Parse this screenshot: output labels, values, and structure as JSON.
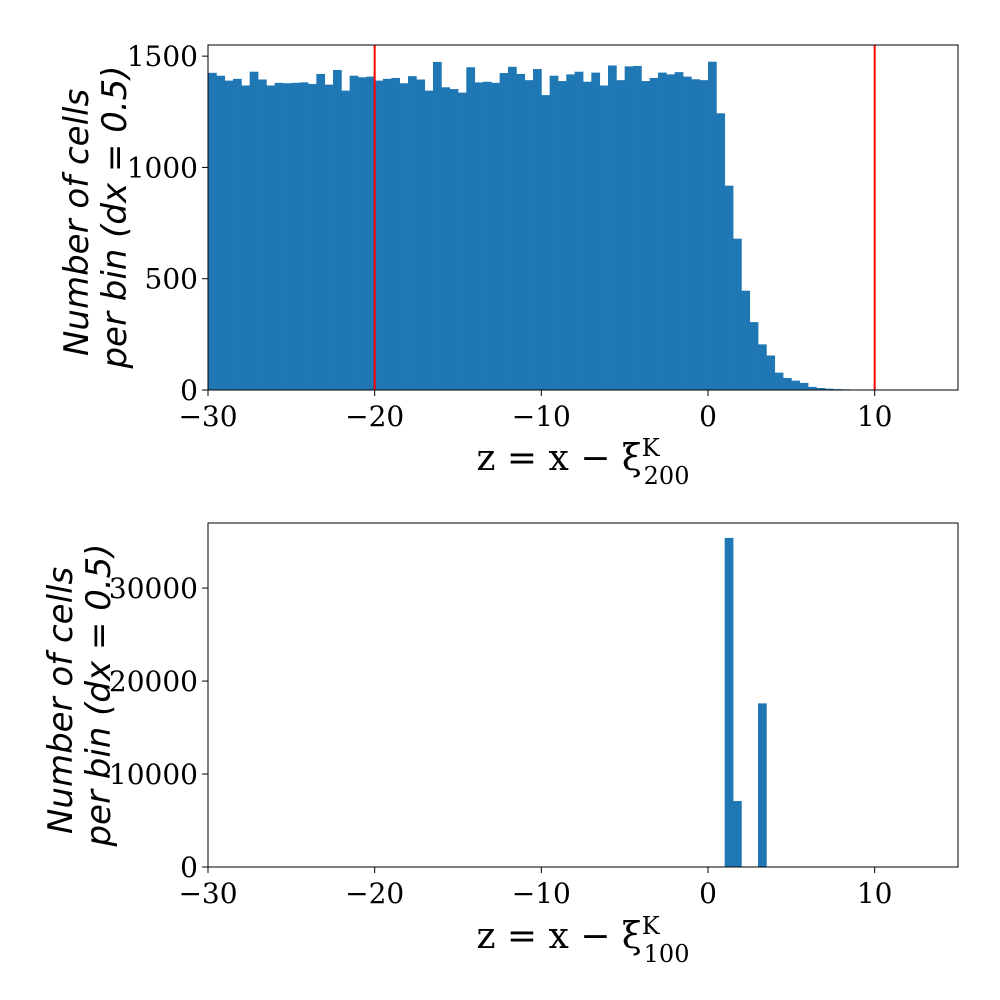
{
  "chart_data": [
    {
      "type": "bar",
      "bin_width": 0.5,
      "xlim": [
        -30,
        15
      ],
      "ylim": [
        0,
        1550
      ],
      "xticks": [
        -30,
        -20,
        -10,
        0,
        10
      ],
      "yticks": [
        0,
        500,
        1000,
        1500
      ],
      "xtick_labels": [
        "−30",
        "−20",
        "−10",
        "0",
        "10"
      ],
      "ytick_labels": [
        "0",
        "500",
        "1000",
        "1500"
      ],
      "xlabel": "z = x − ξ",
      "xlabel_sup": "K",
      "xlabel_sub": "200",
      "ylabel_line1": "Number of cells",
      "ylabel_line2": "per bin (dx = 0.5)",
      "bar_color": "#1f77b4",
      "vlines": [
        -20,
        10
      ],
      "vline_color": "#ff0000",
      "bins_start": -30,
      "values": [
        1425,
        1412,
        1390,
        1398,
        1368,
        1430,
        1395,
        1368,
        1380,
        1378,
        1380,
        1382,
        1375,
        1420,
        1372,
        1438,
        1345,
        1412,
        1405,
        1408,
        1390,
        1398,
        1402,
        1378,
        1410,
        1395,
        1345,
        1474,
        1360,
        1352,
        1336,
        1450,
        1382,
        1385,
        1380,
        1424,
        1452,
        1420,
        1392,
        1442,
        1325,
        1412,
        1388,
        1418,
        1430,
        1385,
        1426,
        1368,
        1458,
        1392,
        1454,
        1456,
        1388,
        1402,
        1426,
        1418,
        1428,
        1408,
        1396,
        1392,
        1475,
        1243,
        918,
        680,
        446,
        305,
        205,
        155,
        78,
        54,
        42,
        32,
        14,
        9,
        6,
        4,
        3,
        2,
        0,
        0,
        0,
        0,
        0,
        0,
        0,
        0,
        0,
        0,
        0,
        0
      ]
    },
    {
      "type": "bar",
      "bin_width": 0.5,
      "xlim": [
        -30,
        15
      ],
      "ylim": [
        0,
        37000
      ],
      "xticks": [
        -30,
        -20,
        -10,
        0,
        10
      ],
      "yticks": [
        0,
        10000,
        20000,
        30000
      ],
      "xtick_labels": [
        "−30",
        "−20",
        "−10",
        "0",
        "10"
      ],
      "ytick_labels": [
        "0",
        "10000",
        "20000",
        "30000"
      ],
      "xlabel": "z = x − ξ",
      "xlabel_sup": "K",
      "xlabel_sub": "100",
      "ylabel_line1": "Number of cells",
      "ylabel_line2": "per bin (dx = 0.5)",
      "bar_color": "#1f77b4",
      "vlines": [],
      "bins": [
        {
          "x0": 1.0,
          "value": 35400
        },
        {
          "x0": 1.5,
          "value": 7100
        },
        {
          "x0": 3.0,
          "value": 17600
        }
      ]
    }
  ]
}
